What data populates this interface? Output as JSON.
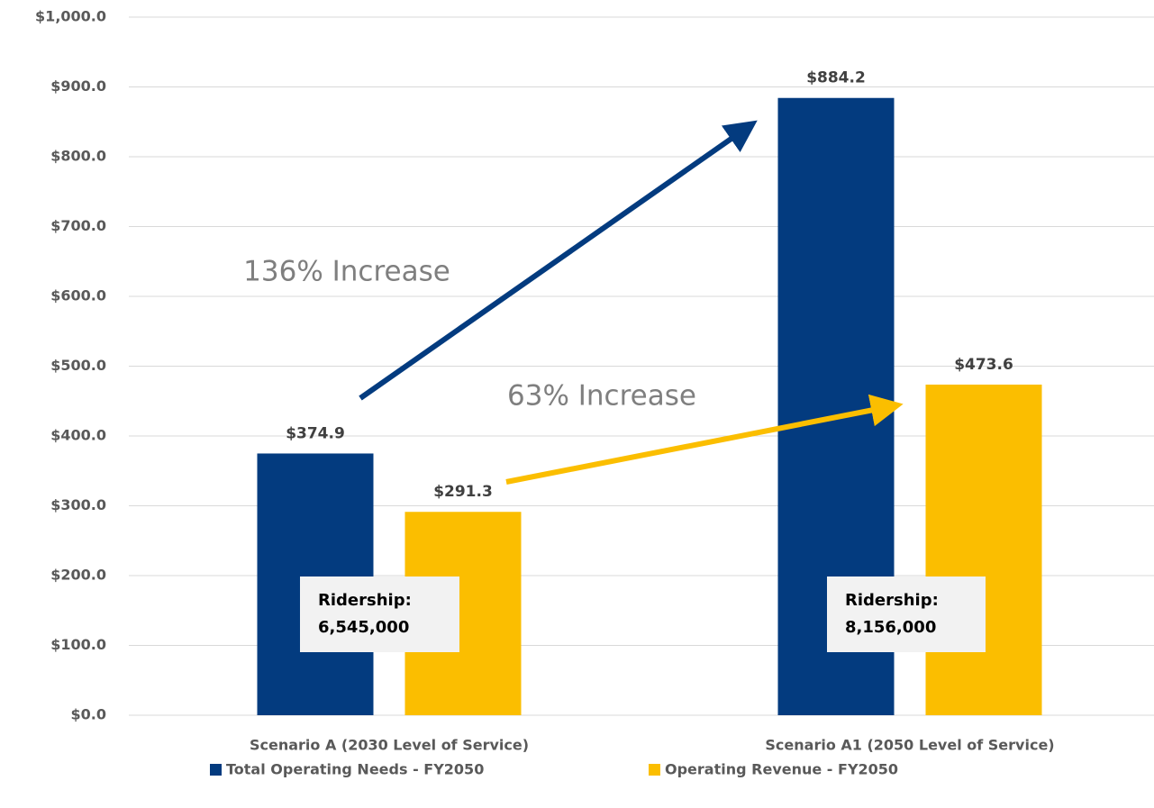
{
  "chart_data": {
    "type": "bar",
    "categories": [
      "Scenario A (2030 Level of Service)",
      "Scenario A1 (2050 Level of Service)"
    ],
    "series": [
      {
        "name": "Total Operating Needs - FY2050",
        "color": "#033b7f",
        "values": [
          374.9,
          884.2
        ],
        "value_labels": [
          "$374.9",
          "$884.2"
        ]
      },
      {
        "name": "Operating Revenue - FY2050",
        "color": "#fbbe00",
        "values": [
          291.3,
          473.6
        ],
        "value_labels": [
          "$291.3",
          "$473.6"
        ]
      }
    ],
    "ylim": [
      0,
      1000
    ],
    "yticks": [
      {
        "value": 0,
        "label": "$0.0"
      },
      {
        "value": 100,
        "label": "$100.0"
      },
      {
        "value": 200,
        "label": "$200.0"
      },
      {
        "value": 300,
        "label": "$300.0"
      },
      {
        "value": 400,
        "label": "$400.0"
      },
      {
        "value": 500,
        "label": "$500.0"
      },
      {
        "value": 600,
        "label": "$600.0"
      },
      {
        "value": 700,
        "label": "$700.0"
      },
      {
        "value": 800,
        "label": "$800.0"
      },
      {
        "value": 900,
        "label": "$900.0"
      },
      {
        "value": 1000,
        "label": "$1,000.0"
      }
    ],
    "grid": true,
    "legend": "bottom",
    "annotations": [
      "136% Increase",
      "63% Increase"
    ],
    "ridership": [
      {
        "label": "Ridership:",
        "value": "6,545,000"
      },
      {
        "label": "Ridership:",
        "value": "8,156,000"
      }
    ]
  }
}
